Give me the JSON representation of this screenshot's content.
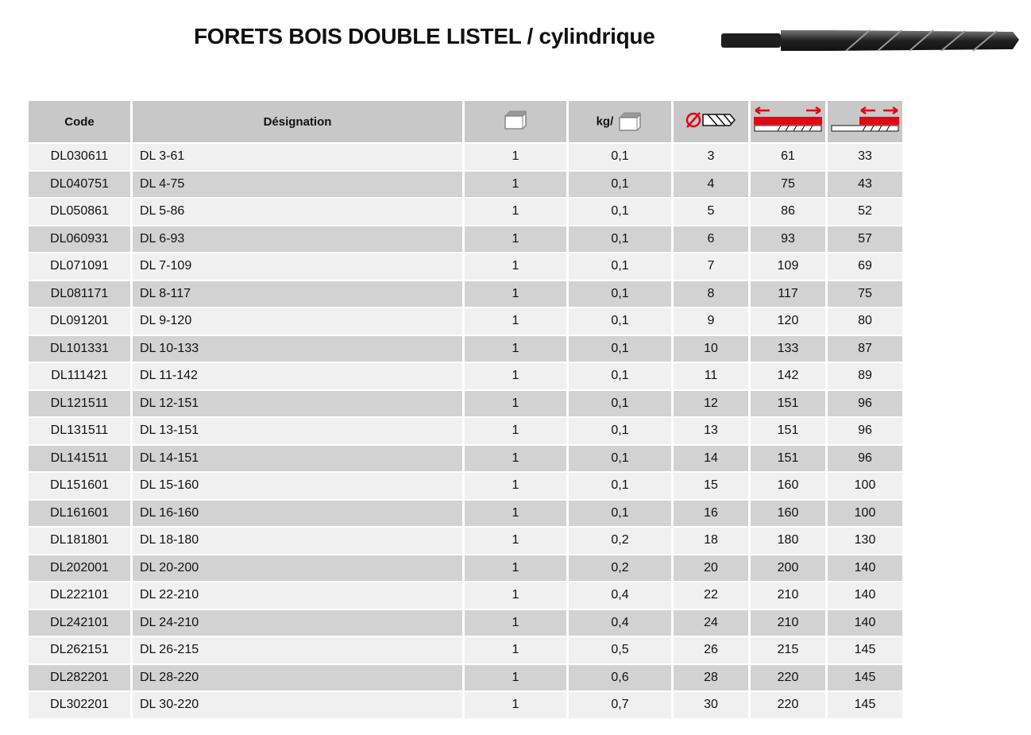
{
  "title": "FORETS BOIS DOUBLE LISTEL / cylindrique",
  "headers": {
    "code": "Code",
    "designation": "Désignation",
    "packaging_icon": "box-icon",
    "weight_prefix": "kg/",
    "diameter_icon": "diameter-drill-icon",
    "total_length_icon": "total-length-icon",
    "working_length_icon": "working-length-icon"
  },
  "colors": {
    "header_bg": "#c8c8c8",
    "row_light": "#f0f0f0",
    "row_dark": "#d2d2d2",
    "accent_red": "#e30613"
  },
  "rows": [
    [
      "DL030611",
      "DL 3-61",
      "1",
      "0,1",
      "3",
      "61",
      "33"
    ],
    [
      "DL040751",
      "DL 4-75",
      "1",
      "0,1",
      "4",
      "75",
      "43"
    ],
    [
      "DL050861",
      "DL 5-86",
      "1",
      "0,1",
      "5",
      "86",
      "52"
    ],
    [
      "DL060931",
      "DL 6-93",
      "1",
      "0,1",
      "6",
      "93",
      "57"
    ],
    [
      "DL071091",
      "DL 7-109",
      "1",
      "0,1",
      "7",
      "109",
      "69"
    ],
    [
      "DL081171",
      "DL 8-117",
      "1",
      "0,1",
      "8",
      "117",
      "75"
    ],
    [
      "DL091201",
      "DL 9-120",
      "1",
      "0,1",
      "9",
      "120",
      "80"
    ],
    [
      "DL101331",
      "DL 10-133",
      "1",
      "0,1",
      "10",
      "133",
      "87"
    ],
    [
      "DL111421",
      "DL 11-142",
      "1",
      "0,1",
      "11",
      "142",
      "89"
    ],
    [
      "DL121511",
      "DL 12-151",
      "1",
      "0,1",
      "12",
      "151",
      "96"
    ],
    [
      "DL131511",
      "DL 13-151",
      "1",
      "0,1",
      "13",
      "151",
      "96"
    ],
    [
      "DL141511",
      "DL 14-151",
      "1",
      "0,1",
      "14",
      "151",
      "96"
    ],
    [
      "DL151601",
      "DL 15-160",
      "1",
      "0,1",
      "15",
      "160",
      "100"
    ],
    [
      "DL161601",
      "DL 16-160",
      "1",
      "0,1",
      "16",
      "160",
      "100"
    ],
    [
      "DL181801",
      "DL 18-180",
      "1",
      "0,2",
      "18",
      "180",
      "130"
    ],
    [
      "DL202001",
      "DL 20-200",
      "1",
      "0,2",
      "20",
      "200",
      "140"
    ],
    [
      "DL222101",
      "DL 22-210",
      "1",
      "0,4",
      "22",
      "210",
      "140"
    ],
    [
      "DL242101",
      "DL 24-210",
      "1",
      "0,4",
      "24",
      "210",
      "140"
    ],
    [
      "DL262151",
      "DL 26-215",
      "1",
      "0,5",
      "26",
      "215",
      "145"
    ],
    [
      "DL282201",
      "DL 28-220",
      "1",
      "0,6",
      "28",
      "220",
      "145"
    ],
    [
      "DL302201",
      "DL 30-220",
      "1",
      "0,7",
      "30",
      "220",
      "145"
    ]
  ]
}
